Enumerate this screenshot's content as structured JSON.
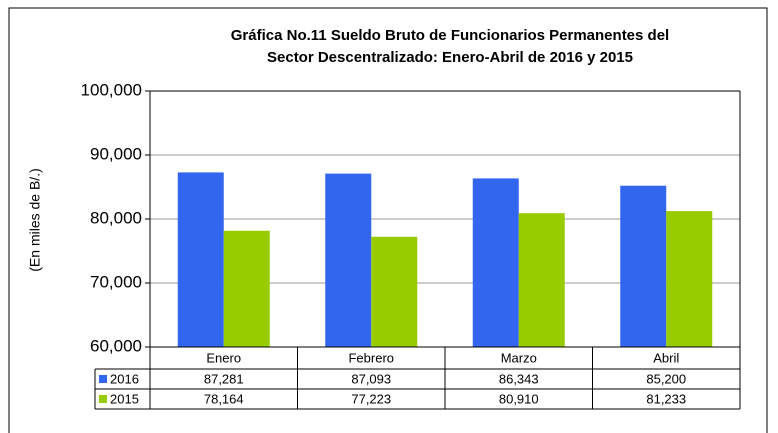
{
  "chart_data": {
    "type": "bar",
    "title": [
      "Gráfica No.11 Sueldo Bruto de Funcionarios Permanentes del",
      "Sector Descentralizado: Enero-Abril de 2016 y 2015"
    ],
    "y_label": "(En miles de B/.)",
    "categories": [
      "Enero",
      "Febrero",
      "Marzo",
      "Abril"
    ],
    "series": [
      {
        "name": "2016",
        "color": "#3366ee",
        "values": [
          87281,
          87093,
          86343,
          85200
        ],
        "value_labels": [
          "87,281",
          "87,093",
          "86,343",
          "85,200"
        ]
      },
      {
        "name": "2015",
        "color": "#99cc00",
        "values": [
          78164,
          77223,
          80910,
          81233
        ],
        "value_labels": [
          "78,164",
          "77,223",
          "80,910",
          "81,233"
        ]
      }
    ],
    "ylim": [
      60000,
      100000
    ],
    "yticks": [
      {
        "value": 60000,
        "label": "60,000"
      },
      {
        "value": 70000,
        "label": "70,000"
      },
      {
        "value": 80000,
        "label": "80,000"
      },
      {
        "value": 90000,
        "label": "90,000"
      },
      {
        "value": 100000,
        "label": "100,000"
      }
    ],
    "grid": true
  }
}
